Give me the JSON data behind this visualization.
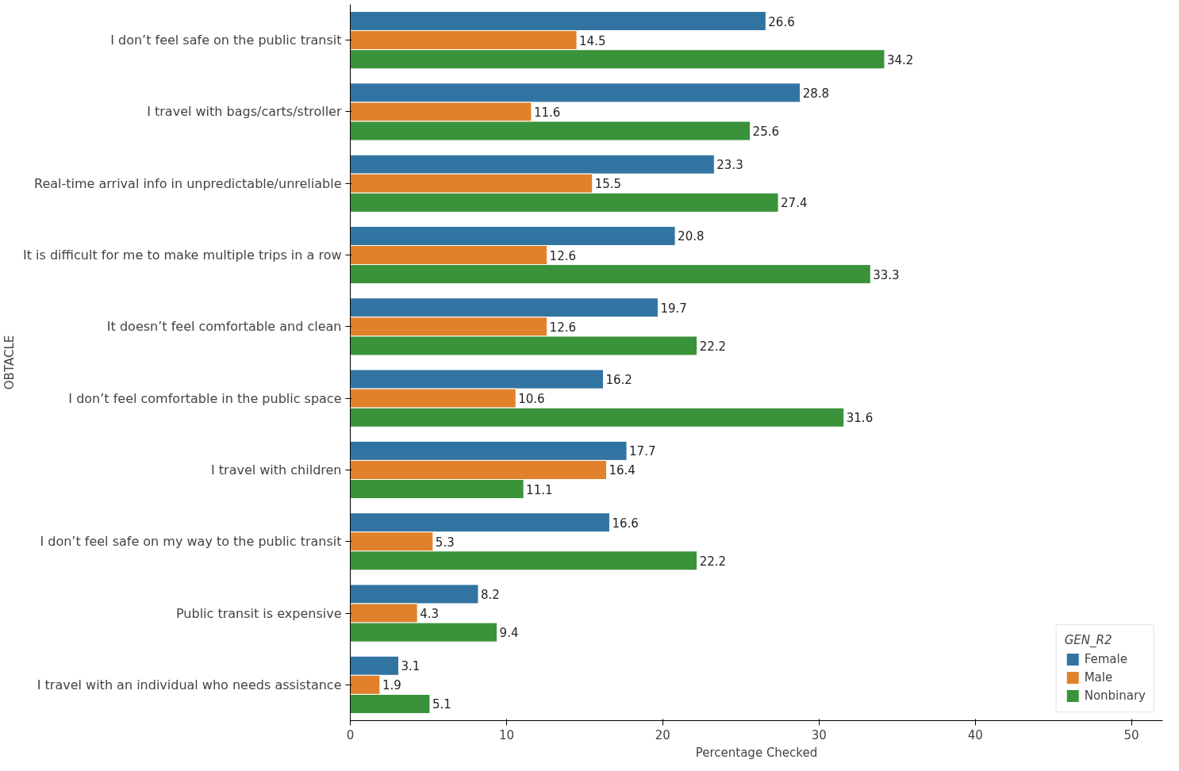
{
  "chart_data": {
    "type": "bar",
    "orientation": "horizontal",
    "xlabel": "Percentage Checked",
    "ylabel": "OBTACLE",
    "legend_title": "GEN_R2",
    "categories": [
      "I don’t feel safe on the public transit",
      "I travel with bags/carts/stroller",
      "Real-time arrival info in unpredictable/unreliable",
      "It is difficult for me to make multiple trips in a row",
      "It doesn’t feel comfortable and clean",
      "I don’t feel comfortable in the public space",
      "I travel with children",
      "I don’t feel safe on my way to the public transit",
      "Public transit is expensive",
      "I travel with an individual who needs assistance"
    ],
    "series": [
      {
        "name": "Female",
        "color": "#3274a1",
        "values": [
          26.6,
          28.8,
          23.3,
          20.8,
          19.7,
          16.2,
          17.7,
          16.6,
          8.2,
          3.1
        ]
      },
      {
        "name": "Male",
        "color": "#e1812c",
        "values": [
          14.5,
          11.6,
          15.5,
          12.6,
          12.6,
          10.6,
          16.4,
          5.3,
          4.3,
          1.9
        ]
      },
      {
        "name": "Nonbinary",
        "color": "#3a923a",
        "values": [
          34.2,
          25.6,
          27.4,
          33.3,
          22.2,
          31.6,
          11.1,
          22.2,
          9.4,
          5.1
        ]
      }
    ],
    "xlim": [
      0,
      52
    ],
    "xticks": [
      0,
      10,
      20,
      30,
      40,
      50
    ],
    "grid": false,
    "legend": "bottom right",
    "data_labels": true
  }
}
